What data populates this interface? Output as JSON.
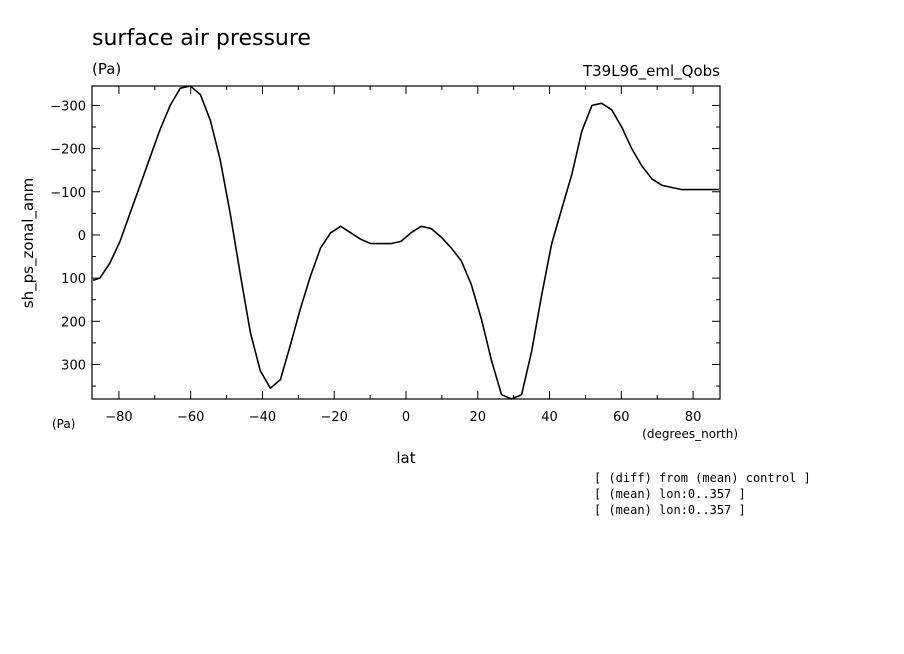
{
  "chart_data": {
    "type": "line",
    "title": "surface air pressure",
    "y_units": "(Pa)",
    "run_name": "T39L96_eml_Qobs",
    "ylabel": "sh_ps_zonal_anm",
    "y_units_bottom": "(Pa)",
    "xlabel": "lat",
    "x_units": "(degrees_north)",
    "xlim": [
      -87.5,
      87.5
    ],
    "ylim": [
      380,
      -345
    ],
    "y_inverted": true,
    "grid": false,
    "x_ticks": [
      -80,
      -60,
      -40,
      -20,
      0,
      20,
      40,
      60,
      80
    ],
    "x_tick_labels": [
      "−80",
      "−60",
      "−40",
      "−20",
      "0",
      "20",
      "40",
      "60",
      "80"
    ],
    "y_ticks": [
      -300,
      -200,
      -100,
      0,
      100,
      200,
      300
    ],
    "y_tick_labels": [
      "−300",
      "−200",
      "−100",
      "0",
      "100",
      "200",
      "300"
    ],
    "notes": [
      "[ (diff) from (mean) control ]",
      "[ (mean) lon:0..357 ]",
      "[ (mean) lon:0..357 ]"
    ],
    "series": [
      {
        "x": [
          -87.2,
          -85.3,
          -82.5,
          -79.7,
          -76.9,
          -74.1,
          -71.3,
          -68.5,
          -65.7,
          -62.9,
          -60.1,
          -57.3,
          -54.5,
          -51.8,
          -49.0,
          -46.2,
          -43.4,
          -40.6,
          -37.8,
          -35.0,
          -32.2,
          -29.4,
          -26.6,
          -23.8,
          -21.0,
          -18.2,
          -15.4,
          -12.6,
          -9.8,
          -7.0,
          -4.2,
          -1.4,
          1.4,
          4.2,
          7.0,
          9.8,
          12.6,
          15.4,
          18.2,
          21.0,
          23.8,
          26.6,
          29.4,
          32.2,
          35.0,
          37.8,
          40.6,
          43.4,
          46.2,
          49.0,
          51.8,
          54.5,
          57.3,
          60.1,
          62.9,
          65.7,
          68.5,
          71.3,
          74.1,
          76.9,
          79.7,
          82.5,
          85.3,
          87.2
        ],
        "values": [
          105,
          100,
          65,
          15,
          -50,
          -115,
          -180,
          -245,
          -300,
          -340,
          -345,
          -325,
          -265,
          -175,
          -50,
          90,
          225,
          315,
          355,
          335,
          255,
          170,
          95,
          30,
          -5,
          -20,
          -5,
          10,
          20,
          20,
          20,
          15,
          -5,
          -20,
          -15,
          5,
          30,
          60,
          115,
          195,
          290,
          370,
          410,
          370,
          270,
          140,
          20,
          -60,
          -140,
          -240,
          -300,
          -305,
          -290,
          -250,
          -200,
          -160,
          -130,
          -115,
          -110,
          -105,
          -105,
          -105,
          -105,
          -105
        ]
      }
    ]
  }
}
